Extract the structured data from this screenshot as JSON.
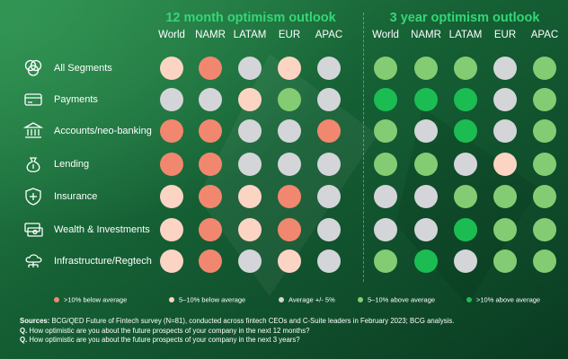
{
  "chart_data": {
    "type": "heatmap",
    "panels": [
      {
        "title": "12 month optimism outlook",
        "columns": [
          "World",
          "NAMR",
          "LATAM",
          "EUR",
          "APAC"
        ],
        "rows": [
          [
            "5-10 below",
            ">10 below",
            "average",
            "5-10 below",
            "average"
          ],
          [
            "average",
            "average",
            "5-10 below",
            "5-10 above",
            "average"
          ],
          [
            ">10 below",
            ">10 below",
            "average",
            "average",
            ">10 below"
          ],
          [
            ">10 below",
            ">10 below",
            "average",
            "average",
            "average"
          ],
          [
            "5-10 below",
            ">10 below",
            "5-10 below",
            ">10 below",
            "average"
          ],
          [
            "5-10 below",
            ">10 below",
            "5-10 below",
            ">10 below",
            "average"
          ],
          [
            "5-10 below",
            ">10 below",
            "average",
            "5-10 below",
            "average"
          ]
        ]
      },
      {
        "title": "3 year optimism outlook",
        "columns": [
          "World",
          "NAMR",
          "LATAM",
          "EUR",
          "APAC"
        ],
        "rows": [
          [
            "5-10 above",
            "5-10 above",
            "5-10 above",
            "average",
            "5-10 above"
          ],
          [
            ">10 above",
            ">10 above",
            ">10 above",
            "average",
            "5-10 above"
          ],
          [
            "5-10 above",
            "average",
            ">10 above",
            "average",
            "5-10 above"
          ],
          [
            "5-10 above",
            "5-10 above",
            "average",
            "5-10 below",
            "5-10 above"
          ],
          [
            "average",
            "average",
            "5-10 above",
            "5-10 above",
            "5-10 above"
          ],
          [
            "average",
            "average",
            ">10 above",
            "5-10 above",
            "5-10 above"
          ],
          [
            "5-10 above",
            ">10 above",
            "average",
            "5-10 above",
            "5-10 above"
          ]
        ]
      }
    ],
    "row_labels": [
      "All Segments",
      "Payments",
      "Accounts/neo-banking",
      "Lending",
      "Insurance",
      "Wealth & Investments",
      "Infrastructure/Regtech"
    ],
    "row_icons": [
      "venn-circles-icon",
      "credit-card-icon",
      "bank-building-icon",
      "money-bag-icon",
      "shield-plus-icon",
      "banknotes-icon",
      "cloud-network-icon"
    ],
    "legend": [
      {
        "key": ">10 below",
        "label": ">10% below average",
        "color": "#f2876f"
      },
      {
        "key": "5-10 below",
        "label": "5–10% below average",
        "color": "#fcd4c4"
      },
      {
        "key": "average",
        "label": "Average +/- 5%",
        "color": "#d3d5d8"
      },
      {
        "key": "5-10 above",
        "label": "5–10% above average",
        "color": "#84cc73"
      },
      {
        "key": ">10 above",
        "label": ">10% above average",
        "color": "#1bbd52"
      }
    ]
  },
  "footer": {
    "sources_label": "Sources:",
    "sources_text": " BCG/QED Future of Fintech survey (N=81), conducted across fintech CEOs and C-Suite leaders in February 2023; BCG analysis.",
    "q_label": "Q.",
    "q1": " How optimistic are you about the future prospects of your company in the next 12 months?",
    "q2": " How optimistic are you about the future prospects of your company in the next 3 years?"
  },
  "colors": {
    "title_green": "#35d676",
    "background_dark": "#0b4226",
    "background_light": "#2a8a4c"
  }
}
